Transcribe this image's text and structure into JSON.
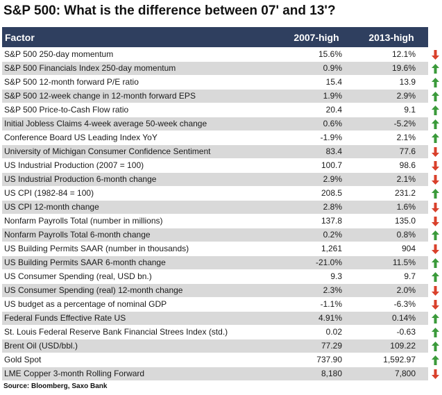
{
  "title": "S&P 500: What is the difference between 07' and 13'?",
  "table": {
    "headers": [
      "Factor",
      "2007-high",
      "2013-high"
    ],
    "rows": [
      {
        "factor": "S&P 500 250-day momentum",
        "v2007": "15.6%",
        "v2013": "12.1%",
        "arrow": "down"
      },
      {
        "factor": "S&P 500 Financials Index 250-day momentum",
        "v2007": "0.9%",
        "v2013": "19.6%",
        "arrow": "up"
      },
      {
        "factor": "S&P 500 12-month forward P/E ratio",
        "v2007": "15.4",
        "v2013": "13.9",
        "arrow": "up"
      },
      {
        "factor": "S&P 500 12-week change in 12-month forward EPS",
        "v2007": "1.9%",
        "v2013": "2.9%",
        "arrow": "up"
      },
      {
        "factor": "S&P 500 Price-to-Cash Flow ratio",
        "v2007": "20.4",
        "v2013": "9.1",
        "arrow": "up"
      },
      {
        "factor": "Initial Jobless Claims 4-week average 50-week change",
        "v2007": "0.6%",
        "v2013": "-5.2%",
        "arrow": "up"
      },
      {
        "factor": "Conference Board US Leading Index YoY",
        "v2007": "-1.9%",
        "v2013": "2.1%",
        "arrow": "up"
      },
      {
        "factor": "University of Michigan Consumer Confidence Sentiment",
        "v2007": "83.4",
        "v2013": "77.6",
        "arrow": "down"
      },
      {
        "factor": "US Industrial Production (2007 = 100)",
        "v2007": "100.7",
        "v2013": "98.6",
        "arrow": "down"
      },
      {
        "factor": "US Industrial Production 6-month change",
        "v2007": "2.9%",
        "v2013": "2.1%",
        "arrow": "down"
      },
      {
        "factor": "US CPI (1982-84 = 100)",
        "v2007": "208.5",
        "v2013": "231.2",
        "arrow": "up"
      },
      {
        "factor": "US CPI 12-month change",
        "v2007": "2.8%",
        "v2013": "1.6%",
        "arrow": "down"
      },
      {
        "factor": "Nonfarm Payrolls Total  (number in millions)",
        "v2007": "137.8",
        "v2013": "135.0",
        "arrow": "down"
      },
      {
        "factor": "Nonfarm Payrolls Total 6-month change",
        "v2007": "0.2%",
        "v2013": "0.8%",
        "arrow": "up"
      },
      {
        "factor": "US Building Permits SAAR (number in thousands)",
        "v2007": "1,261",
        "v2013": "904",
        "arrow": "down"
      },
      {
        "factor": "US Building Permits SAAR 6-month change",
        "v2007": "-21.0%",
        "v2013": "11.5%",
        "arrow": "up"
      },
      {
        "factor": "US Consumer Spending (real, USD bn.)",
        "v2007": "9.3",
        "v2013": "9.7",
        "arrow": "up"
      },
      {
        "factor": "US Consumer Spending (real) 12-month change",
        "v2007": "2.3%",
        "v2013": "2.0%",
        "arrow": "down"
      },
      {
        "factor": "US budget as a percentage of nominal GDP",
        "v2007": "-1.1%",
        "v2013": "-6.3%",
        "arrow": "down"
      },
      {
        "factor": "Federal Funds Effective Rate US",
        "v2007": "4.91%",
        "v2013": "0.14%",
        "arrow": "up"
      },
      {
        "factor": "St. Louis Federal Reserve Bank Financial Strees Index (std.)",
        "v2007": "0.02",
        "v2013": "-0.63",
        "arrow": "up"
      },
      {
        "factor": "Brent Oil (USD/bbl.)",
        "v2007": "77.29",
        "v2013": "109.22",
        "arrow": "up"
      },
      {
        "factor": "Gold Spot",
        "v2007": "737.90",
        "v2013": "1,592.97",
        "arrow": "up"
      },
      {
        "factor": "LME Copper 3-month Rolling Forward",
        "v2007": "8,180",
        "v2013": "7,800",
        "arrow": "down"
      }
    ]
  },
  "source": "Source: Bloomberg, Saxo Bank",
  "colors": {
    "header_bg": "#2f3f5f",
    "alt_row": "#d9d9d9",
    "up_arrow": "#3a9a3a",
    "down_arrow": "#d9402b"
  }
}
